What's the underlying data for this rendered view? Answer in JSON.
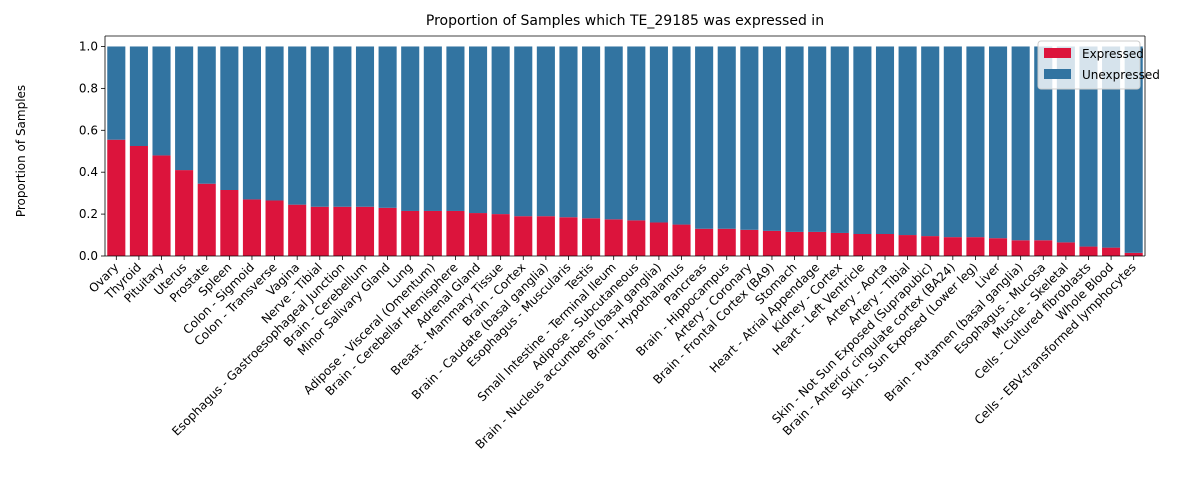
{
  "chart_data": {
    "type": "bar",
    "stacked": true,
    "title": "Proportion of Samples which TE_29185 was expressed in",
    "xlabel": "",
    "ylabel": "Proportion of Samples",
    "ylim": [
      0,
      1.05
    ],
    "yticks": [
      "0.0",
      "0.2",
      "0.4",
      "0.6",
      "0.8",
      "1.0"
    ],
    "grid": false,
    "legend_position": "top-right",
    "categories": [
      "Ovary",
      "Thyroid",
      "Pituitary",
      "Uterus",
      "Prostate",
      "Spleen",
      "Colon - Sigmoid",
      "Colon - Transverse",
      "Vagina",
      "Nerve - Tibial",
      "Esophagus - Gastroesophageal Junction",
      "Brain - Cerebellum",
      "Minor Salivary Gland",
      "Lung",
      "Adipose - Visceral (Omentum)",
      "Brain - Cerebellar Hemisphere",
      "Adrenal Gland",
      "Breast - Mammary Tissue",
      "Brain - Cortex",
      "Brain - Caudate (basal ganglia)",
      "Esophagus - Muscularis",
      "Testis",
      "Small Intestine - Terminal Ileum",
      "Adipose - Subcutaneous",
      "Brain - Nucleus accumbens (basal ganglia)",
      "Brain - Hypothalamus",
      "Pancreas",
      "Brain - Hippocampus",
      "Artery - Coronary",
      "Brain - Frontal Cortex (BA9)",
      "Stomach",
      "Heart - Atrial Appendage",
      "Kidney - Cortex",
      "Heart - Left Ventricle",
      "Artery - Aorta",
      "Artery - Tibial",
      "Skin - Not Sun Exposed (Suprapubic)",
      "Brain - Anterior cingulate cortex (BA24)",
      "Skin - Sun Exposed (Lower leg)",
      "Liver",
      "Brain - Putamen (basal ganglia)",
      "Esophagus - Mucosa",
      "Muscle - Skeletal",
      "Cells - Cultured fibroblasts",
      "Whole Blood",
      "Cells - EBV-transformed lymphocytes"
    ],
    "series": [
      {
        "name": "Expressed",
        "color": "#dc143c",
        "values": [
          0.555,
          0.525,
          0.48,
          0.41,
          0.345,
          0.315,
          0.27,
          0.265,
          0.245,
          0.235,
          0.235,
          0.235,
          0.23,
          0.215,
          0.215,
          0.215,
          0.205,
          0.2,
          0.19,
          0.19,
          0.185,
          0.18,
          0.175,
          0.17,
          0.16,
          0.15,
          0.13,
          0.13,
          0.125,
          0.12,
          0.115,
          0.115,
          0.11,
          0.105,
          0.105,
          0.1,
          0.095,
          0.09,
          0.09,
          0.085,
          0.075,
          0.075,
          0.065,
          0.045,
          0.04,
          0.015
        ]
      },
      {
        "name": "Unexpressed",
        "color": "#3274a1",
        "values": [
          0.445,
          0.475,
          0.52,
          0.59,
          0.655,
          0.685,
          0.73,
          0.735,
          0.755,
          0.765,
          0.765,
          0.765,
          0.77,
          0.785,
          0.785,
          0.785,
          0.795,
          0.8,
          0.81,
          0.81,
          0.815,
          0.82,
          0.825,
          0.83,
          0.84,
          0.85,
          0.87,
          0.87,
          0.875,
          0.88,
          0.885,
          0.885,
          0.89,
          0.895,
          0.895,
          0.9,
          0.905,
          0.91,
          0.91,
          0.915,
          0.925,
          0.925,
          0.935,
          0.955,
          0.96,
          0.985
        ]
      }
    ]
  }
}
